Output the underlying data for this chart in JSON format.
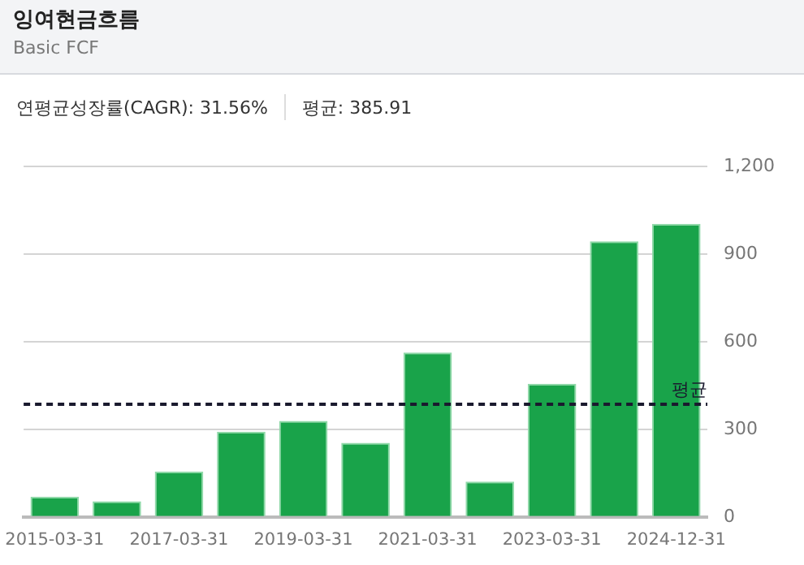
{
  "chart_data": {
    "type": "bar",
    "title": "잉여현금흐름",
    "subtitle": "Basic FCF",
    "annotations": [
      "연평균성장률(CAGR): 31.56%",
      "평균: 385.91"
    ],
    "categories": [
      "2015-03-31",
      null,
      "2017-03-31",
      null,
      "2019-03-31",
      null,
      "2021-03-31",
      null,
      "2023-03-31",
      null,
      "2024-12-31"
    ],
    "values": [
      69,
      54,
      155,
      292,
      329,
      254,
      563,
      121,
      456,
      944,
      1004
    ],
    "color": "#19a34a",
    "ylim": [
      0,
      1200
    ],
    "yticks": [
      0,
      300,
      600,
      900,
      {
        "value": 1200,
        "label": "1,200"
      }
    ],
    "grid": "y",
    "legend": false,
    "ref_lines": [
      {
        "axis": "y",
        "value": 385.91,
        "label": "평균",
        "color": "#1a1a2e",
        "line_style": "dashed"
      }
    ]
  }
}
